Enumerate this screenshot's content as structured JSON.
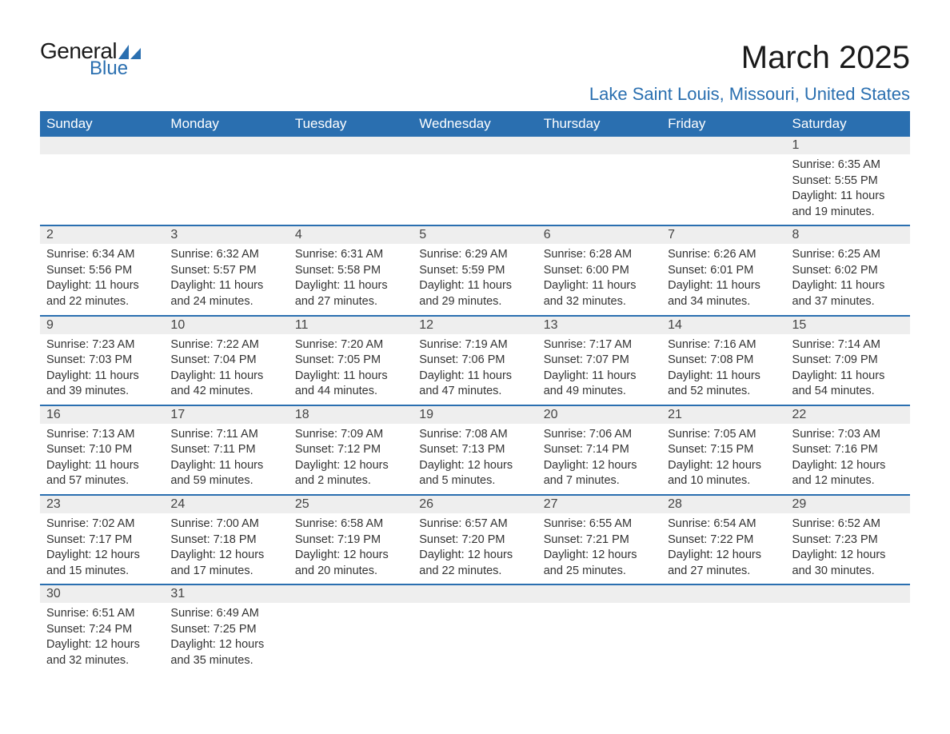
{
  "logo": {
    "text_top": "General",
    "text_bottom": "Blue",
    "accent_color": "#2a6fb0",
    "text_color": "#1a1a1a"
  },
  "title": "March 2025",
  "location": "Lake Saint Louis, Missouri, United States",
  "colors": {
    "header_bg": "#2a6fb0",
    "header_text": "#ffffff",
    "daynum_bg": "#eeeeee",
    "body_text": "#333333",
    "row_border": "#2a6fb0",
    "page_bg": "#ffffff"
  },
  "fonts": {
    "title_size_pt": 30,
    "location_size_pt": 17,
    "header_size_pt": 13,
    "daynum_size_pt": 12,
    "body_size_pt": 11
  },
  "day_headers": [
    "Sunday",
    "Monday",
    "Tuesday",
    "Wednesday",
    "Thursday",
    "Friday",
    "Saturday"
  ],
  "weeks": [
    [
      null,
      null,
      null,
      null,
      null,
      null,
      {
        "n": "1",
        "sunrise": "6:35 AM",
        "sunset": "5:55 PM",
        "daylight": "11 hours and 19 minutes."
      }
    ],
    [
      {
        "n": "2",
        "sunrise": "6:34 AM",
        "sunset": "5:56 PM",
        "daylight": "11 hours and 22 minutes."
      },
      {
        "n": "3",
        "sunrise": "6:32 AM",
        "sunset": "5:57 PM",
        "daylight": "11 hours and 24 minutes."
      },
      {
        "n": "4",
        "sunrise": "6:31 AM",
        "sunset": "5:58 PM",
        "daylight": "11 hours and 27 minutes."
      },
      {
        "n": "5",
        "sunrise": "6:29 AM",
        "sunset": "5:59 PM",
        "daylight": "11 hours and 29 minutes."
      },
      {
        "n": "6",
        "sunrise": "6:28 AM",
        "sunset": "6:00 PM",
        "daylight": "11 hours and 32 minutes."
      },
      {
        "n": "7",
        "sunrise": "6:26 AM",
        "sunset": "6:01 PM",
        "daylight": "11 hours and 34 minutes."
      },
      {
        "n": "8",
        "sunrise": "6:25 AM",
        "sunset": "6:02 PM",
        "daylight": "11 hours and 37 minutes."
      }
    ],
    [
      {
        "n": "9",
        "sunrise": "7:23 AM",
        "sunset": "7:03 PM",
        "daylight": "11 hours and 39 minutes."
      },
      {
        "n": "10",
        "sunrise": "7:22 AM",
        "sunset": "7:04 PM",
        "daylight": "11 hours and 42 minutes."
      },
      {
        "n": "11",
        "sunrise": "7:20 AM",
        "sunset": "7:05 PM",
        "daylight": "11 hours and 44 minutes."
      },
      {
        "n": "12",
        "sunrise": "7:19 AM",
        "sunset": "7:06 PM",
        "daylight": "11 hours and 47 minutes."
      },
      {
        "n": "13",
        "sunrise": "7:17 AM",
        "sunset": "7:07 PM",
        "daylight": "11 hours and 49 minutes."
      },
      {
        "n": "14",
        "sunrise": "7:16 AM",
        "sunset": "7:08 PM",
        "daylight": "11 hours and 52 minutes."
      },
      {
        "n": "15",
        "sunrise": "7:14 AM",
        "sunset": "7:09 PM",
        "daylight": "11 hours and 54 minutes."
      }
    ],
    [
      {
        "n": "16",
        "sunrise": "7:13 AM",
        "sunset": "7:10 PM",
        "daylight": "11 hours and 57 minutes."
      },
      {
        "n": "17",
        "sunrise": "7:11 AM",
        "sunset": "7:11 PM",
        "daylight": "11 hours and 59 minutes."
      },
      {
        "n": "18",
        "sunrise": "7:09 AM",
        "sunset": "7:12 PM",
        "daylight": "12 hours and 2 minutes."
      },
      {
        "n": "19",
        "sunrise": "7:08 AM",
        "sunset": "7:13 PM",
        "daylight": "12 hours and 5 minutes."
      },
      {
        "n": "20",
        "sunrise": "7:06 AM",
        "sunset": "7:14 PM",
        "daylight": "12 hours and 7 minutes."
      },
      {
        "n": "21",
        "sunrise": "7:05 AM",
        "sunset": "7:15 PM",
        "daylight": "12 hours and 10 minutes."
      },
      {
        "n": "22",
        "sunrise": "7:03 AM",
        "sunset": "7:16 PM",
        "daylight": "12 hours and 12 minutes."
      }
    ],
    [
      {
        "n": "23",
        "sunrise": "7:02 AM",
        "sunset": "7:17 PM",
        "daylight": "12 hours and 15 minutes."
      },
      {
        "n": "24",
        "sunrise": "7:00 AM",
        "sunset": "7:18 PM",
        "daylight": "12 hours and 17 minutes."
      },
      {
        "n": "25",
        "sunrise": "6:58 AM",
        "sunset": "7:19 PM",
        "daylight": "12 hours and 20 minutes."
      },
      {
        "n": "26",
        "sunrise": "6:57 AM",
        "sunset": "7:20 PM",
        "daylight": "12 hours and 22 minutes."
      },
      {
        "n": "27",
        "sunrise": "6:55 AM",
        "sunset": "7:21 PM",
        "daylight": "12 hours and 25 minutes."
      },
      {
        "n": "28",
        "sunrise": "6:54 AM",
        "sunset": "7:22 PM",
        "daylight": "12 hours and 27 minutes."
      },
      {
        "n": "29",
        "sunrise": "6:52 AM",
        "sunset": "7:23 PM",
        "daylight": "12 hours and 30 minutes."
      }
    ],
    [
      {
        "n": "30",
        "sunrise": "6:51 AM",
        "sunset": "7:24 PM",
        "daylight": "12 hours and 32 minutes."
      },
      {
        "n": "31",
        "sunrise": "6:49 AM",
        "sunset": "7:25 PM",
        "daylight": "12 hours and 35 minutes."
      },
      null,
      null,
      null,
      null,
      null
    ]
  ],
  "labels": {
    "sunrise": "Sunrise: ",
    "sunset": "Sunset: ",
    "daylight": "Daylight: "
  }
}
